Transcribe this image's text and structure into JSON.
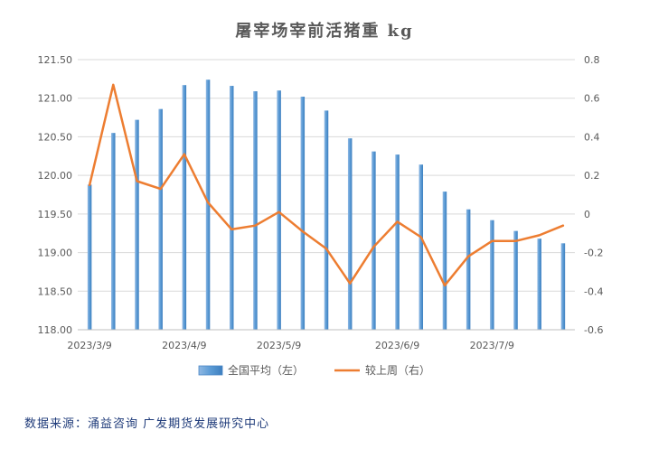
{
  "chart_data": {
    "type": "bar+line",
    "title": "屠宰场宰前活猪重 kg",
    "x_tick_labels": [
      "2023/3/9",
      "2023/4/9",
      "2023/5/9",
      "2023/6/9",
      "2023/7/9"
    ],
    "y_left": {
      "min": 118.0,
      "max": 121.5,
      "step": 0.5,
      "ticks": [
        "118.00",
        "118.50",
        "119.00",
        "119.50",
        "120.00",
        "120.50",
        "121.00",
        "121.50"
      ]
    },
    "y_right": {
      "min": -0.6,
      "max": 0.8,
      "step": 0.2,
      "ticks": [
        "-0.6",
        "-0.4",
        "-0.2",
        "0",
        "0.2",
        "0.4",
        "0.6",
        "0.8"
      ]
    },
    "series": [
      {
        "name": "全国平均（左）",
        "kind": "bar",
        "axis": "left",
        "color": "#5b9bd5",
        "values": [
          119.88,
          120.55,
          120.72,
          120.86,
          121.17,
          121.24,
          121.16,
          121.09,
          121.1,
          121.02,
          120.84,
          120.48,
          120.31,
          120.27,
          120.14,
          119.79,
          119.56,
          119.42,
          119.28,
          119.18,
          119.12
        ]
      },
      {
        "name": "较上周（右）",
        "kind": "line",
        "axis": "right",
        "color": "#ed7d31",
        "values": [
          0.15,
          0.67,
          0.17,
          0.13,
          0.31,
          0.06,
          -0.08,
          -0.06,
          0.01,
          -0.09,
          -0.18,
          -0.36,
          -0.17,
          -0.04,
          -0.12,
          -0.37,
          -0.22,
          -0.14,
          -0.14,
          -0.11,
          -0.06
        ]
      }
    ],
    "legend_position": "bottom"
  },
  "footer": {
    "source": "数据来源：涌益咨询  广发期货发展研究中心"
  }
}
